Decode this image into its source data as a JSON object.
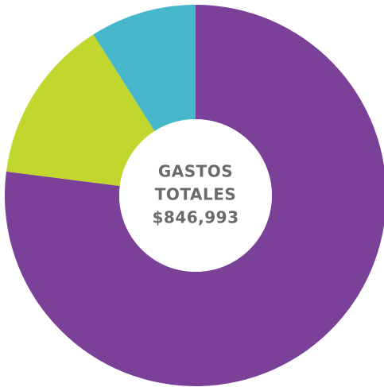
{
  "chart_data": {
    "type": "donut",
    "values": [
      77,
      14,
      9
    ],
    "colors": [
      "#7b4199",
      "#c2d72e",
      "#47b8cc"
    ],
    "center_text": [
      "GASTOS",
      "TOTALES",
      "$846,993"
    ]
  }
}
